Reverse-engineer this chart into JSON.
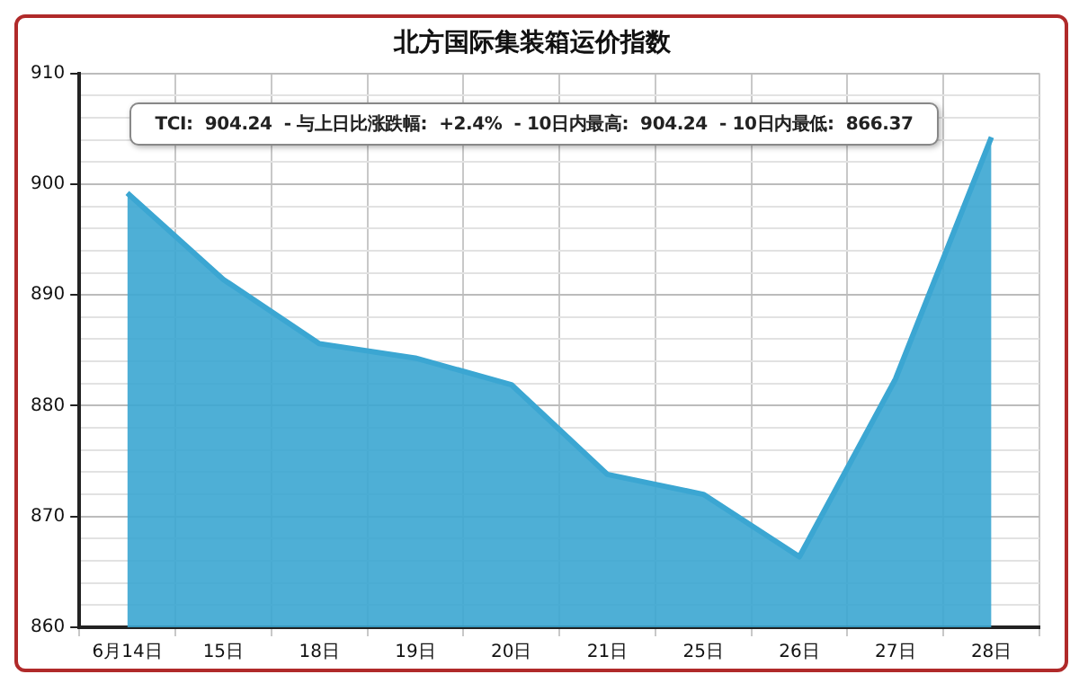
{
  "chart_data": {
    "type": "area",
    "title": "北方国际集装箱运价指数",
    "categories": [
      "6月14日",
      "15日",
      "18日",
      "19日",
      "20日",
      "21日",
      "25日",
      "26日",
      "27日",
      "28日"
    ],
    "series": [
      {
        "color": "#3ba6d2",
        "values": [
          899.2,
          891.4,
          885.6,
          884.3,
          881.9,
          873.8,
          872.0,
          866.37,
          882.4,
          904.24
        ]
      }
    ],
    "ylim": [
      860,
      910
    ],
    "yticks": [
      860,
      {
        "value": 862,
        "label": null
      },
      {
        "value": 864,
        "label": null
      },
      {
        "value": 866,
        "label": null
      },
      {
        "value": 868,
        "label": null
      },
      870,
      {
        "value": 872,
        "label": null
      },
      {
        "value": 874,
        "label": null
      },
      {
        "value": 876,
        "label": null
      },
      {
        "value": 878,
        "label": null
      },
      880,
      {
        "value": 882,
        "label": null
      },
      {
        "value": 884,
        "label": null
      },
      {
        "value": 886,
        "label": null
      },
      {
        "value": 888,
        "label": null
      },
      890,
      {
        "value": 892,
        "label": null
      },
      {
        "value": 894,
        "label": null
      },
      {
        "value": 896,
        "label": null
      },
      {
        "value": 898,
        "label": null
      },
      900,
      {
        "value": 902,
        "label": null
      },
      {
        "value": 904,
        "label": null
      },
      {
        "value": 906,
        "label": null
      },
      {
        "value": 908,
        "label": null
      },
      910
    ],
    "grid": true,
    "legend": false,
    "marker": "none",
    "line_style": "solid",
    "annotations": [
      "TCI:  904.24  - 与上日比涨跌幅:  +2.4%  - 10日内最高:  904.24  - 10日内最低:  866.37"
    ]
  }
}
